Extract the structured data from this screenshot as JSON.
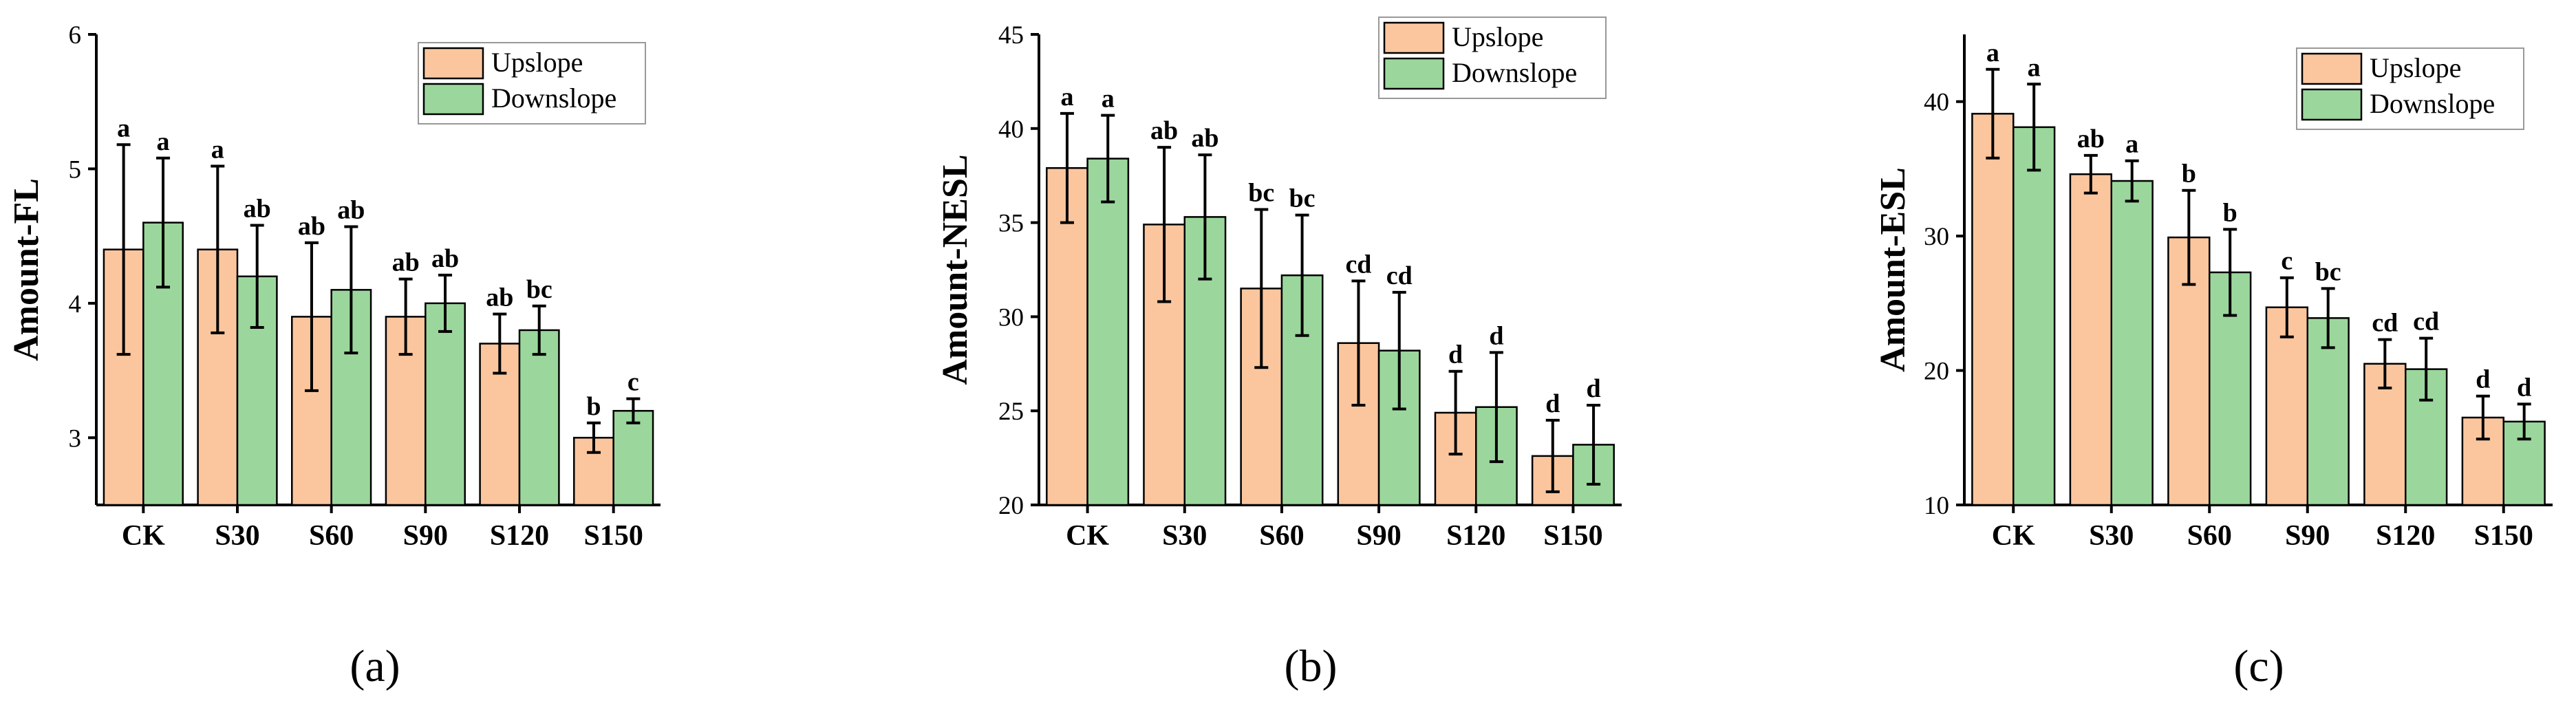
{
  "colors": {
    "upslope": "#fbc69e",
    "downslope": "#9bd79c",
    "stroke": "#000000"
  },
  "chart_data": [
    {
      "type": "bar",
      "panel_label": "(a)",
      "ylabel": "Amount-FL",
      "categories": [
        "CK",
        "S30",
        "S60",
        "S90",
        "S120",
        "S150"
      ],
      "ylim": [
        2.5,
        6
      ],
      "yticks": [
        3,
        4,
        5,
        6
      ],
      "legend": {
        "position": "top-right",
        "entries": [
          "Upslope",
          "Downslope"
        ]
      },
      "series": [
        {
          "name": "Upslope",
          "values": [
            4.4,
            4.4,
            3.9,
            3.9,
            3.7,
            3.0
          ],
          "errors": [
            0.78,
            0.62,
            0.55,
            0.28,
            0.22,
            0.11
          ],
          "letters": [
            "a",
            "a",
            "ab",
            "ab",
            "ab",
            "b"
          ]
        },
        {
          "name": "Downslope",
          "values": [
            4.6,
            4.2,
            4.1,
            4.0,
            3.8,
            3.2
          ],
          "errors": [
            0.48,
            0.38,
            0.47,
            0.21,
            0.18,
            0.09
          ],
          "letters": [
            "a",
            "ab",
            "ab",
            "ab",
            "bc",
            "c"
          ]
        }
      ]
    },
    {
      "type": "bar",
      "panel_label": "(b)",
      "ylabel": "Amount-NESL",
      "categories": [
        "CK",
        "S30",
        "S60",
        "S90",
        "S120",
        "S150"
      ],
      "ylim": [
        20,
        45
      ],
      "yticks": [
        20,
        25,
        30,
        35,
        40,
        45
      ],
      "legend": {
        "position": "top-right",
        "entries": [
          "Upslope",
          "Downslope"
        ]
      },
      "series": [
        {
          "name": "Upslope",
          "values": [
            37.9,
            34.9,
            31.5,
            28.6,
            24.9,
            22.6
          ],
          "errors": [
            2.9,
            4.1,
            4.2,
            3.3,
            2.2,
            1.9
          ],
          "letters": [
            "a",
            "ab",
            "bc",
            "cd",
            "d",
            "d"
          ]
        },
        {
          "name": "Downslope",
          "values": [
            38.4,
            35.3,
            32.2,
            28.2,
            25.2,
            23.2
          ],
          "errors": [
            2.3,
            3.3,
            3.2,
            3.1,
            2.9,
            2.1
          ],
          "letters": [
            "a",
            "ab",
            "bc",
            "cd",
            "d",
            "d"
          ]
        }
      ]
    },
    {
      "type": "bar",
      "panel_label": "(c)",
      "ylabel": "Amount-ESL",
      "categories": [
        "CK",
        "S30",
        "S60",
        "S90",
        "S120",
        "S150"
      ],
      "ylim": [
        10,
        45
      ],
      "yticks": [
        10,
        20,
        30,
        40
      ],
      "legend": {
        "position": "top-right",
        "entries": [
          "Upslope",
          "Downslope"
        ]
      },
      "series": [
        {
          "name": "Upslope",
          "values": [
            39.1,
            34.6,
            29.9,
            24.7,
            20.5,
            16.5
          ],
          "errors": [
            3.3,
            1.4,
            3.5,
            2.2,
            1.8,
            1.6
          ],
          "letters": [
            "a",
            "ab",
            "b",
            "c",
            "cd",
            "d"
          ]
        },
        {
          "name": "Downslope",
          "values": [
            38.1,
            34.1,
            27.3,
            23.9,
            20.1,
            16.2
          ],
          "errors": [
            3.2,
            1.5,
            3.2,
            2.2,
            2.3,
            1.3
          ],
          "letters": [
            "a",
            "a",
            "b",
            "bc",
            "cd",
            "d"
          ]
        }
      ]
    }
  ]
}
